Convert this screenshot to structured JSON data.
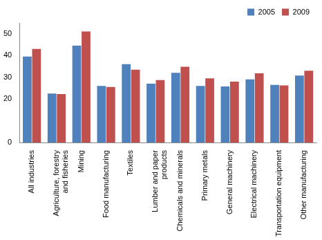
{
  "chart_data": {
    "type": "bar",
    "categories": [
      "All industries",
      "Agriculture, forestry and fisheries",
      "Mining",
      "Food manufacturing",
      "Textiles",
      "Lumber and paper products",
      "Chemicals and minerals",
      "Primary metals",
      "General machinery",
      "Electrical machinery",
      "Transportation equipment",
      "Other manufacturing"
    ],
    "series": [
      {
        "name": "2005",
        "color": "#4f81bd",
        "values": [
          39.5,
          22.5,
          44.5,
          26,
          36,
          27,
          32,
          26,
          25.8,
          29,
          26.5,
          30.8
        ]
      },
      {
        "name": "2009",
        "color": "#c0504d",
        "values": [
          43,
          22.3,
          51,
          25.5,
          33.5,
          28.7,
          34.8,
          29.5,
          28,
          31.8,
          26.2,
          33
        ]
      }
    ],
    "ylim": [
      0,
      55
    ],
    "yticks": [
      0,
      20,
      30,
      40,
      50
    ],
    "grid": false,
    "legend": "upper right"
  }
}
